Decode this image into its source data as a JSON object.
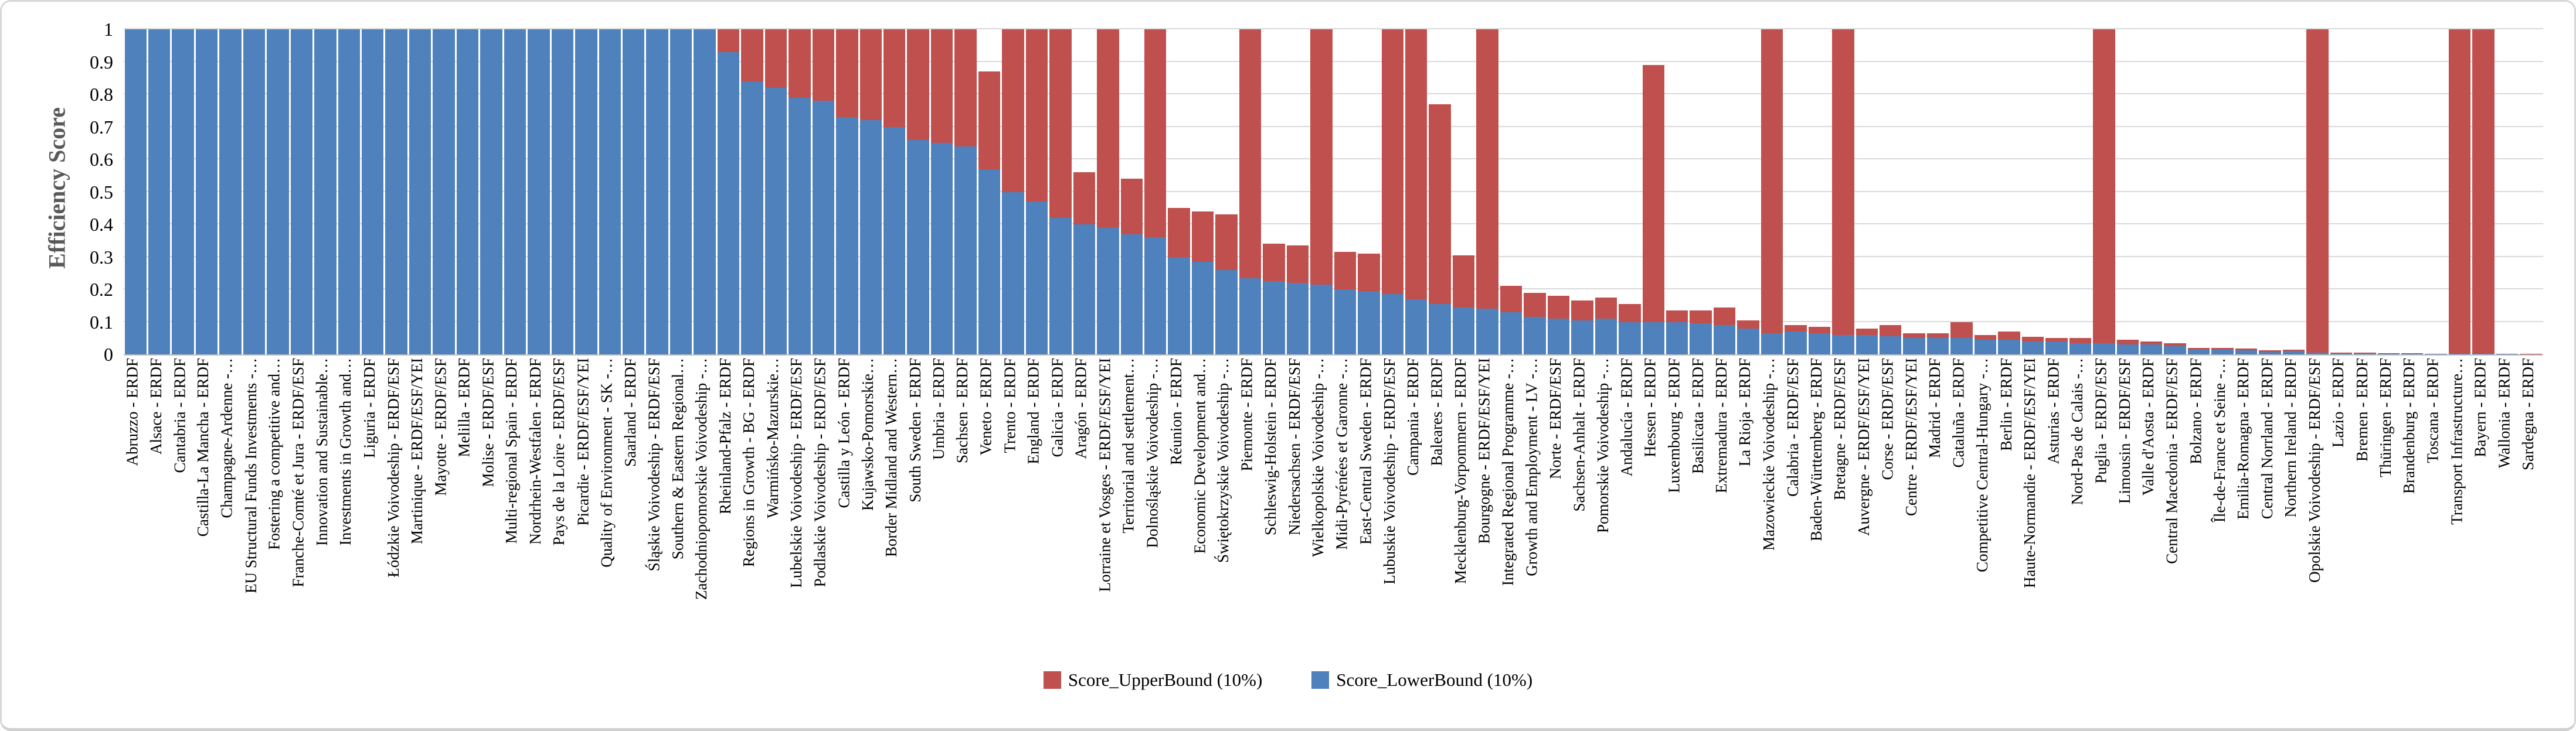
{
  "chart_data": {
    "type": "bar",
    "stacked": true,
    "title": "",
    "xlabel": "",
    "ylabel": "Efficiency Score",
    "ylim": [
      0,
      1
    ],
    "ytick_labels": [
      "0",
      "0.1",
      "0.2",
      "0.3",
      "0.4",
      "0.5",
      "0.6",
      "0.7",
      "0.8",
      "0.9",
      "1"
    ],
    "grid": true,
    "legend_position": "bottom",
    "legend": [
      {
        "label": "Score_UpperBound (10%)",
        "color": "#C0504D"
      },
      {
        "label": "Score_LowerBound (10%)",
        "color": "#4F81BD"
      }
    ],
    "categories": [
      "Abruzzo - ERDF",
      "Alsace - ERDF",
      "Cantabria - ERDF",
      "Castilla-La Mancha - ERDF",
      "Champagne-Ardenne -…",
      "EU Structural Funds Investments -…",
      "Fostering a competitive and…",
      "Franche-Comté et Jura - ERDF/ESF",
      "Innovation and Sustainable…",
      "Investments in Growth and…",
      "Liguria - ERDF",
      "Łódzkie Voivodeship - ERDF/ESF",
      "Martinique - ERDF/ESF/YEI",
      "Mayotte - ERDF/ESF",
      "Melilla - ERDF",
      "Molise - ERDF/ESF",
      "Multi-regional Spain - ERDF",
      "Nordrhein-Westfalen - ERDF",
      "Pays de la Loire - ERDF/ESF",
      "Picardie - ERDF/ESF/YEI",
      "Quality of Environment - SK -…",
      "Saarland - ERDF",
      "Śląskie Voivodeship - ERDF/ESF",
      "Southern & Eastern Regional…",
      "Zachodniopomorskie Voivodeship -…",
      "Rheinland-Pfalz - ERDF",
      "Regions in Growth - BG - ERDF",
      "Warmińsko-Mazurskie…",
      "Lubelskie Voivodeship - ERDF/ESF",
      "Podlaskie Voivodeship - ERDF/ESF",
      "Castilla y León - ERDF",
      "Kujawsko-Pomorskie…",
      "Border Midland and Western…",
      "South Sweden - ERDF",
      "Umbria - ERDF",
      "Sachsen - ERDF",
      "Veneto - ERDF",
      "Trento - ERDF",
      "England - ERDF",
      "Galicia - ERDF",
      "Aragón - ERDF",
      "Lorraine et Vosges - ERDF/ESF/YEI",
      "Territorial and settlement…",
      "Dolnośląskie Voivodeship -…",
      "Réunion - ERDF",
      "Economic Development and…",
      "Świętokrzyskie Voivodeship -…",
      "Piemonte - ERDF",
      "Schleswig-Holstein - ERDF",
      "Niedersachsen - ERDF/ESF",
      "Wielkopolskie Voivodeship -…",
      "Midi-Pyrénées et Garonne -…",
      "East-Central Sweden - ERDF",
      "Lubuskie Voivodeship - ERDF/ESF",
      "Campania - ERDF",
      "Baleares - ERDF",
      "Mecklenburg-Vorpommern - ERDF",
      "Bourgogne - ERDF/ESF/YEI",
      "Integrated Regional Programme -…",
      "Growth and Employment - LV -…",
      "Norte - ERDF/ESF",
      "Sachsen-Anhalt - ERDF",
      "Pomorskie Voivodeship -…",
      "Andalucía - ERDF",
      "Hessen - ERDF",
      "Luxembourg - ERDF",
      "Basilicata - ERDF",
      "Extremadura - ERDF",
      "La Rioja - ERDF",
      "Mazowieckie Voivodeship -…",
      "Calabria - ERDF/ESF",
      "Baden-Württemberg - ERDF",
      "Bretagne - ERDF/ESF",
      "Auvergne - ERDF/ESF/YEI",
      "Corse - ERDF/ESF",
      "Centre - ERDF/ESF/YEI",
      "Madrid - ERDF",
      "Cataluña - ERDF",
      "Competitive Central-Hungary -…",
      "Berlin - ERDF",
      "Haute-Normandie - ERDF/ESF/YEI",
      "Asturias - ERDF",
      "Nord-Pas de Calais -…",
      "Puglia - ERDF/ESF",
      "Limousin - ERDF/ESF",
      "Valle d'Aosta - ERDF",
      "Central Macedonia - ERDF/ESF",
      "Bolzano - ERDF",
      "Île-de-France et Seine -…",
      "Emilia-Romagna - ERDF",
      "Central Norrland - ERDF",
      "Northern Ireland - ERDF",
      "Opolskie Voivodeship - ERDF/ESF",
      "Lazio - ERDF",
      "Bremen - ERDF",
      "Thüringen - ERDF",
      "Brandenburg - ERDF",
      "Toscana - ERDF",
      "Transport Infrastructure…",
      "Bayern - ERDF",
      "Wallonia - ERDF",
      "Sardegna - ERDF"
    ],
    "series": [
      {
        "name": "Score_LowerBound (10%)",
        "color": "#4F81BD",
        "values": [
          1,
          1,
          1,
          1,
          1,
          1,
          1,
          1,
          1,
          1,
          1,
          1,
          1,
          1,
          1,
          1,
          1,
          1,
          1,
          1,
          1,
          1,
          1,
          1,
          1,
          0.93,
          0.84,
          0.82,
          0.79,
          0.78,
          0.73,
          0.72,
          0.7,
          0.66,
          0.65,
          0.64,
          0.57,
          0.5,
          0.47,
          0.42,
          0.4,
          0.39,
          0.37,
          0.36,
          0.3,
          0.285,
          0.26,
          0.235,
          0.225,
          0.22,
          0.215,
          0.2,
          0.195,
          0.185,
          0.17,
          0.155,
          0.145,
          0.14,
          0.13,
          0.115,
          0.11,
          0.105,
          0.11,
          0.1,
          0.1,
          0.1,
          0.095,
          0.09,
          0.08,
          0.065,
          0.07,
          0.065,
          0.06,
          0.06,
          0.055,
          0.05,
          0.05,
          0.05,
          0.045,
          0.045,
          0.04,
          0.04,
          0.035,
          0.035,
          0.03,
          0.03,
          0.025,
          0.015,
          0.015,
          0.012,
          0.008,
          0.01,
          0.005,
          0.004,
          0.003,
          0.002,
          0.002,
          0.001,
          0.001,
          0.001,
          0.001,
          0
        ]
      },
      {
        "name": "Score_UpperBound (10%)",
        "color": "#C0504D",
        "values": [
          1,
          1,
          1,
          1,
          1,
          1,
          1,
          1,
          1,
          1,
          1,
          1,
          1,
          1,
          1,
          1,
          1,
          1,
          1,
          1,
          1,
          1,
          1,
          1,
          1,
          1,
          1,
          1,
          1,
          1,
          1,
          1,
          1,
          1,
          1,
          1,
          0.87,
          1,
          1,
          1,
          0.56,
          1,
          0.54,
          1,
          0.45,
          0.44,
          0.43,
          1,
          0.34,
          0.335,
          1,
          0.315,
          0.31,
          1,
          1,
          0.77,
          0.305,
          1,
          0.21,
          0.19,
          0.18,
          0.165,
          0.175,
          0.155,
          0.89,
          0.135,
          0.135,
          0.145,
          0.105,
          1,
          0.09,
          0.085,
          1,
          0.08,
          0.09,
          0.065,
          0.065,
          0.1,
          0.06,
          0.07,
          0.055,
          0.05,
          0.05,
          1,
          0.045,
          0.04,
          0.035,
          0.02,
          0.02,
          0.018,
          0.012,
          0.015,
          1,
          0.006,
          0.005,
          0.004,
          0.003,
          0.002,
          1,
          1,
          0.002,
          0.001
        ]
      }
    ]
  }
}
